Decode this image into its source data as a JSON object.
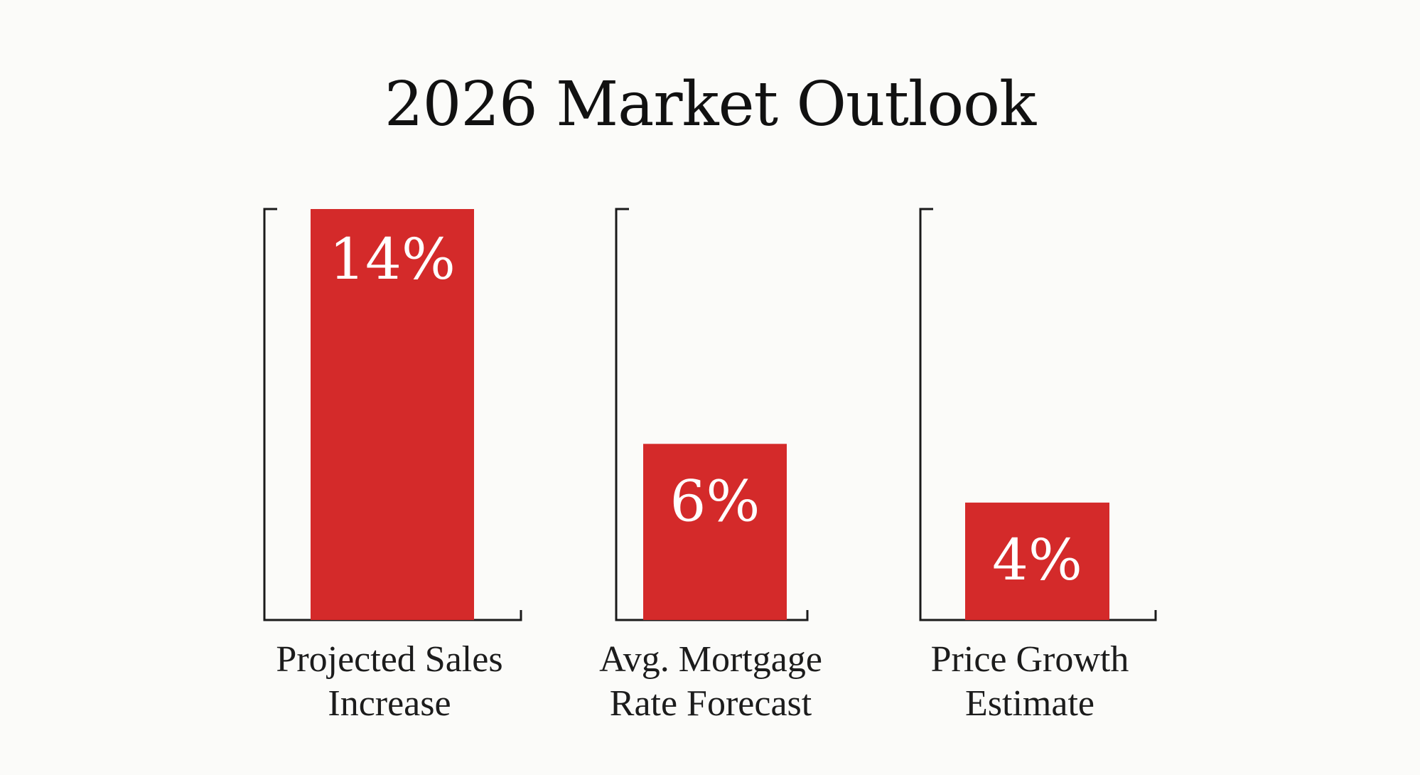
{
  "chart_data": {
    "type": "bar",
    "title": "2026 Market Outlook",
    "categories": [
      "Projected Sales Increase",
      "Avg. Mortgage Rate Forecast",
      "Price Growth Estimate"
    ],
    "category_lines": [
      [
        "Projected Sales",
        "Increase"
      ],
      [
        "Avg. Mortgage",
        "Rate Forecast"
      ],
      [
        "Price Growth",
        "Estimate"
      ]
    ],
    "values": [
      14,
      6,
      4
    ],
    "value_labels": [
      "14%",
      "6%",
      "4%"
    ],
    "unit": "%",
    "ylim": [
      0,
      14
    ],
    "grid": false,
    "xlabel": "",
    "ylabel": "",
    "colors": {
      "bar": "#d42a2a",
      "axis": "#1a1a1a",
      "value_label": "#ffffff",
      "background": "#fbfbf9"
    }
  }
}
